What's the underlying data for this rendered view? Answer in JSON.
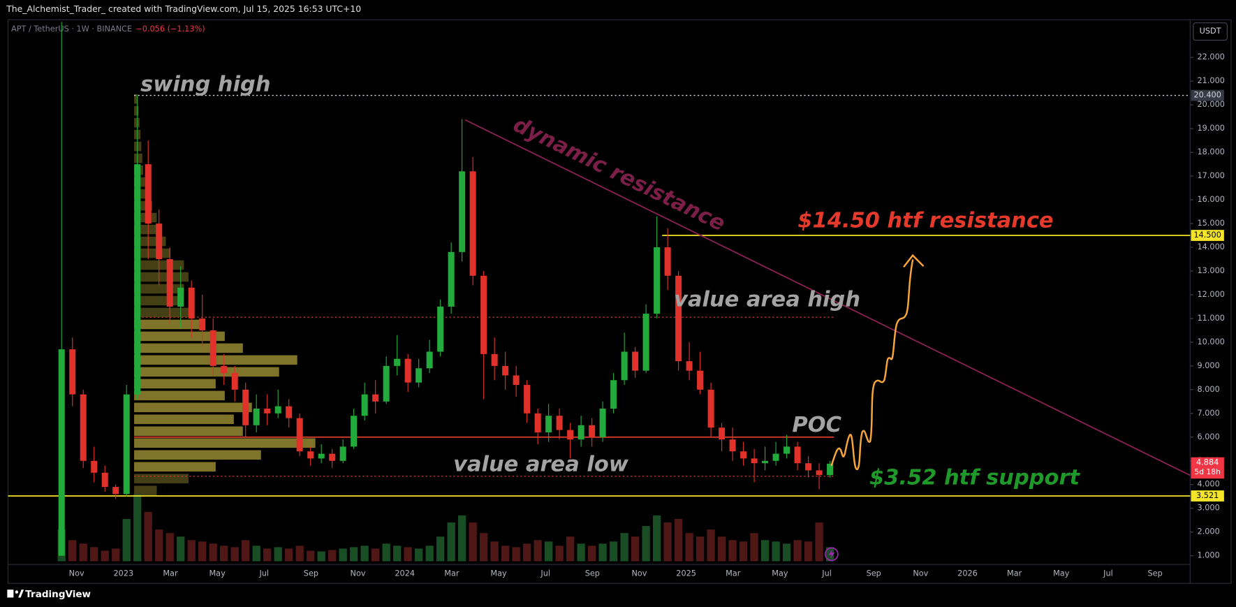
{
  "header": {
    "author_line": "The_Alchemist_Trader_ created with TradingView.com, Jul 15, 2025 16:53 UTC+10",
    "footer": "TradingView"
  },
  "chart_data": {
    "type": "candlestick",
    "title": "APT / TetherUS · 1W · BINANCE",
    "change": "−0.056 (−1.13%)",
    "currency": "USDT",
    "ylim": [
      0.635,
      23.59
    ],
    "yticks": [
      {
        "value": 1,
        "label": "1.000"
      },
      {
        "value": 2,
        "label": "2.000"
      },
      {
        "value": 3,
        "label": "3.000"
      },
      {
        "value": 4,
        "label": "4.000"
      },
      {
        "value": 5,
        "label": "5.000"
      },
      {
        "value": 6,
        "label": "6.000"
      },
      {
        "value": 7,
        "label": "7.000"
      },
      {
        "value": 8,
        "label": "8.000"
      },
      {
        "value": 9,
        "label": "9.000"
      },
      {
        "value": 10,
        "label": "10.000"
      },
      {
        "value": 11,
        "label": "11.000"
      },
      {
        "value": 12,
        "label": "12.000"
      },
      {
        "value": 13,
        "label": "13.000"
      },
      {
        "value": 14,
        "label": "14.000"
      },
      {
        "value": 15,
        "label": "15.000"
      },
      {
        "value": 16,
        "label": "16.000"
      },
      {
        "value": 17,
        "label": "17.000"
      },
      {
        "value": 18,
        "label": "18.000"
      },
      {
        "value": 19,
        "label": "19.000"
      },
      {
        "value": 20,
        "label": "20.000"
      },
      {
        "value": 21,
        "label": "21.000"
      },
      {
        "value": 22,
        "label": "22.000"
      }
    ],
    "grid": false,
    "xtick_labels": [
      "Nov",
      "2023",
      "Mar",
      "May",
      "Jul",
      "Sep",
      "Nov",
      "2024",
      "Mar",
      "May",
      "Jul",
      "Sep",
      "Nov",
      "2025",
      "Mar",
      "May",
      "Jul",
      "Sep",
      "Nov",
      "2026",
      "Mar",
      "May",
      "Jul",
      "Sep"
    ],
    "up_color": "#22ab3c",
    "down_color": "#e0312a",
    "open": [
      1.0,
      9.7,
      7.8,
      5.0,
      4.5,
      3.9,
      3.6,
      7.8,
      17.5,
      15.0,
      13.5,
      11.5,
      12.3,
      11.0,
      10.5,
      9.0,
      8.7,
      8.0,
      6.5,
      7.2,
      7.0,
      7.3,
      6.8,
      5.4,
      5.1,
      5.3,
      5.0,
      5.6,
      6.9,
      7.8,
      7.5,
      9.0,
      9.3,
      8.3,
      8.9,
      9.6,
      11.5,
      13.8,
      17.2,
      12.8,
      9.5,
      9.0,
      8.6,
      8.2,
      7.0,
      6.2,
      6.9,
      6.3,
      5.9,
      6.5,
      6.0,
      7.2,
      8.4,
      9.6,
      8.8,
      11.2,
      14.0,
      12.8,
      9.2,
      8.8,
      8.0,
      6.4,
      5.9,
      5.4,
      5.1,
      4.9,
      5.0,
      5.3,
      5.6,
      4.9,
      4.6,
      4.4
    ],
    "high": [
      23.5,
      10.2,
      8.0,
      5.6,
      4.8,
      4.0,
      8.2,
      20.4,
      18.5,
      15.6,
      14.0,
      13.2,
      12.6,
      12.0,
      11.0,
      9.5,
      9.0,
      8.3,
      7.8,
      7.8,
      8.0,
      7.6,
      7.0,
      5.6,
      5.7,
      5.5,
      5.9,
      7.2,
      8.3,
      8.4,
      9.4,
      10.3,
      9.5,
      9.3,
      10.1,
      11.8,
      14.2,
      19.4,
      17.8,
      13.0,
      10.2,
      9.6,
      9.0,
      8.4,
      7.2,
      7.4,
      7.2,
      6.6,
      6.9,
      6.8,
      7.5,
      8.7,
      10.4,
      9.8,
      11.6,
      15.3,
      14.8,
      13.0,
      10.0,
      9.6,
      8.3,
      6.6,
      6.4,
      5.8,
      5.5,
      5.6,
      5.8,
      6.1,
      5.8,
      5.2,
      4.9,
      5.0
    ],
    "low": [
      1.0,
      7.3,
      4.7,
      4.1,
      3.7,
      3.4,
      3.5,
      7.6,
      13.5,
      12.4,
      10.8,
      10.6,
      10.2,
      9.8,
      8.6,
      8.2,
      7.5,
      6.0,
      6.2,
      6.5,
      6.8,
      6.4,
      5.2,
      4.8,
      4.9,
      4.7,
      4.9,
      5.5,
      6.7,
      7.0,
      7.4,
      8.6,
      7.9,
      8.1,
      8.7,
      9.4,
      11.2,
      13.4,
      12.4,
      7.6,
      8.4,
      8.0,
      7.7,
      6.6,
      5.7,
      5.8,
      5.9,
      5.1,
      5.6,
      5.6,
      5.8,
      7.0,
      8.2,
      8.5,
      8.7,
      11.0,
      12.2,
      8.8,
      8.4,
      7.8,
      6.0,
      5.4,
      5.0,
      4.8,
      4.1,
      4.6,
      4.8,
      5.1,
      4.6,
      4.3,
      3.8,
      4.3
    ],
    "close": [
      9.7,
      7.8,
      5.0,
      4.5,
      3.9,
      3.6,
      7.8,
      17.5,
      15.0,
      13.5,
      11.5,
      12.3,
      11.0,
      10.5,
      9.0,
      8.7,
      8.0,
      6.5,
      7.2,
      7.0,
      7.3,
      6.8,
      5.4,
      5.1,
      5.3,
      5.0,
      5.6,
      6.9,
      7.8,
      7.5,
      9.0,
      9.3,
      8.3,
      8.9,
      9.6,
      11.5,
      13.8,
      17.2,
      12.8,
      9.5,
      9.0,
      8.6,
      8.2,
      7.0,
      6.2,
      6.9,
      6.3,
      5.9,
      6.5,
      6.0,
      7.2,
      8.4,
      9.6,
      8.8,
      11.2,
      14.0,
      12.8,
      9.2,
      8.8,
      8.0,
      6.4,
      5.9,
      5.4,
      5.1,
      4.9,
      5.0,
      5.3,
      5.6,
      4.9,
      4.6,
      4.4,
      4.88
    ],
    "volume": [
      45,
      30,
      25,
      20,
      15,
      18,
      60,
      95,
      70,
      45,
      40,
      35,
      30,
      28,
      25,
      22,
      20,
      30,
      22,
      18,
      20,
      18,
      22,
      15,
      14,
      16,
      18,
      20,
      22,
      18,
      25,
      22,
      20,
      18,
      22,
      35,
      55,
      65,
      55,
      40,
      28,
      22,
      20,
      25,
      30,
      28,
      22,
      35,
      25,
      22,
      25,
      28,
      40,
      35,
      50,
      65,
      55,
      60,
      40,
      35,
      45,
      35,
      30,
      28,
      40,
      30,
      28,
      25,
      30,
      28,
      55,
      20
    ],
    "volume_profile": {
      "prices": [
        3.75,
        4.25,
        4.75,
        5.25,
        5.75,
        6.25,
        6.75,
        7.25,
        7.75,
        8.25,
        8.75,
        9.25,
        9.75,
        10.25,
        10.75,
        11.25,
        11.75,
        12.25,
        12.75,
        13.25,
        13.75,
        14.25,
        14.75,
        15.25,
        15.75,
        16.25,
        16.75,
        17.25,
        17.75,
        18.25,
        18.75,
        19.25,
        19.75,
        20.25
      ],
      "volumes": [
        25,
        60,
        90,
        140,
        200,
        120,
        110,
        130,
        100,
        90,
        160,
        180,
        120,
        100,
        75,
        60,
        50,
        55,
        60,
        55,
        40,
        35,
        30,
        25,
        20,
        15,
        12,
        10,
        9,
        8,
        7,
        6,
        5,
        4
      ]
    },
    "levels": [
      {
        "value": 20.4,
        "label": "20.400",
        "color": "#d1d4dc",
        "style": "dotted"
      },
      {
        "value": 14.5,
        "label": "14.500",
        "color": "#f5e52a",
        "style": "solid"
      },
      {
        "value": 11.05,
        "color": "#c0392b",
        "style": "dotted"
      },
      {
        "value": 6.0,
        "color": "#d63a2f",
        "style": "solid"
      },
      {
        "value": 4.35,
        "color": "#c0392b",
        "style": "dotted"
      },
      {
        "value": 3.521,
        "label": "3.521",
        "color": "#f5e52a",
        "style": "solid"
      }
    ],
    "last_price": {
      "value": 4.884,
      "label": "4.884",
      "countdown": "5d 18h"
    },
    "trendline": {
      "values": [
        19.37,
        4.39
      ],
      "color": "#8b2252"
    },
    "annotations": [
      {
        "text": "swing high",
        "color": "#a3a3a3"
      },
      {
        "text": "dynamic resistance",
        "color": "#7c1f48"
      },
      {
        "text": "$14.50 htf resistance",
        "color": "#e5392b"
      },
      {
        "text": "value area high",
        "color": "#a3a3a3"
      },
      {
        "text": "POC",
        "color": "#a3a3a3"
      },
      {
        "text": "value area low",
        "color": "#a3a3a3"
      },
      {
        "text": "$3.52 htf support",
        "color": "#1f9a2a"
      }
    ]
  }
}
